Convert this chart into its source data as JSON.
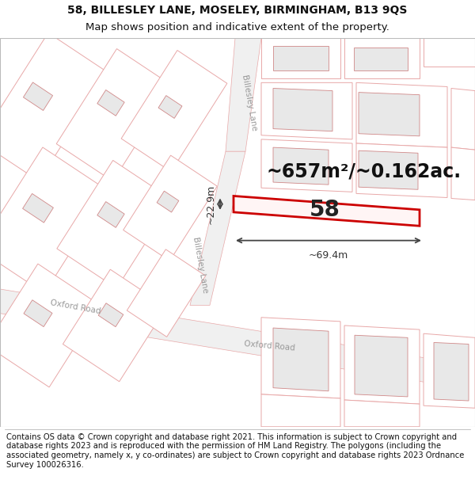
{
  "title_line1": "58, BILLESLEY LANE, MOSELEY, BIRMINGHAM, B13 9QS",
  "title_line2": "Map shows position and indicative extent of the property.",
  "footer": "Contains OS data © Crown copyright and database right 2021. This information is subject to Crown copyright and database rights 2023 and is reproduced with the permission of HM Land Registry. The polygons (including the associated geometry, namely x, y co-ordinates) are subject to Crown copyright and database rights 2023 Ordnance Survey 100026316.",
  "area_text": "~657m²/~0.162ac.",
  "property_number": "58",
  "dim_width": "~69.4m",
  "dim_height": "~22.9m",
  "background_color": "#ffffff",
  "road_fill": "#f5f5f5",
  "road_edge": "#e8a8a8",
  "bld_fill": "#e8e8e8",
  "bld_edge": "#d08888",
  "boundary_edge": "#e8a8a8",
  "road_label_color": "#999999",
  "highlight_color": "#cc0000",
  "dim_color": "#333333",
  "title_fontsize": 10,
  "footer_fontsize": 7.2,
  "area_fontsize": 17,
  "num_fontsize": 20,
  "dim_fontsize": 9,
  "road_label_fontsize": 7.5
}
